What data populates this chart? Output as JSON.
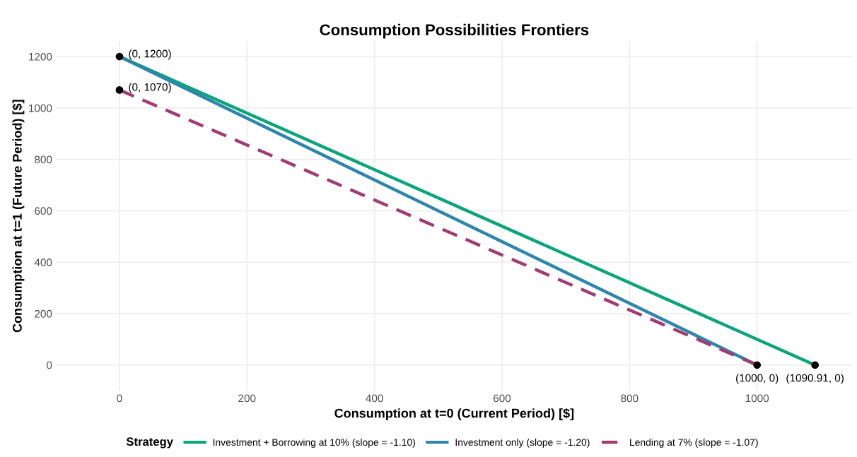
{
  "chart_data": {
    "type": "line",
    "title": "Consumption Possibilities Frontiers",
    "xlabel": "Consumption at t=0 (Current Period) [$]",
    "ylabel": "Consumption at t=1 (Future Period) [$]",
    "legend_title": "Strategy",
    "series": [
      {
        "name": "Investment + Borrowing at 10% (slope = -1.10)",
        "color": "#0aa57a",
        "x": [
          0,
          1090.91
        ],
        "values": [
          1200,
          0
        ],
        "line_style": "solid"
      },
      {
        "name": "Investment only (slope = -1.20)",
        "color": "#2e86ab",
        "x": [
          0,
          1000
        ],
        "values": [
          1200,
          0
        ],
        "line_style": "solid"
      },
      {
        "name": "Lending at 7% (slope = -1.07)",
        "color": "#a23b72",
        "x": [
          0,
          1000
        ],
        "values": [
          1070,
          0
        ],
        "line_style": "dashed"
      },
      {
        "type": "scatter",
        "color": "#000000",
        "marker": "circle",
        "x": [
          0,
          0,
          1000,
          1090.91
        ],
        "values": [
          1200,
          1070,
          0,
          0
        ]
      }
    ],
    "annotations": [
      {
        "text": "(0, 1200)",
        "x": 0,
        "y": 1200
      },
      {
        "text": "(0, 1070)",
        "x": 0,
        "y": 1070
      },
      {
        "text": "(1000, 0)",
        "x": 1000,
        "y": 0
      },
      {
        "text": "(1090.91, 0)",
        "x": 1090.91,
        "y": 0
      }
    ],
    "xlim": [
      -100,
      1150
    ],
    "ylim": [
      -100,
      1260
    ],
    "xticks": [
      0,
      200,
      400,
      600,
      800,
      1000
    ],
    "yticks": [
      0,
      200,
      400,
      600,
      800,
      1000,
      1200
    ],
    "grid": true,
    "legend": "bottom"
  }
}
